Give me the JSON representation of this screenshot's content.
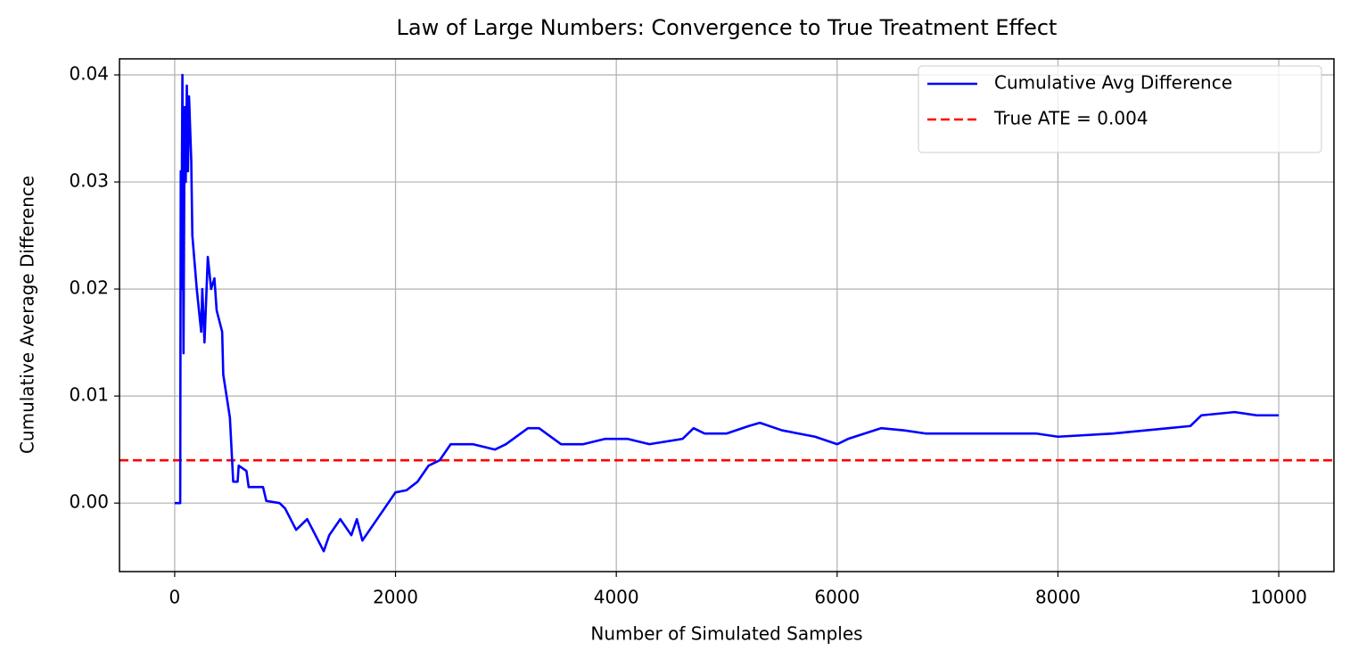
{
  "chart_data": {
    "type": "line",
    "title": "Law of Large Numbers: Convergence to True Treatment Effect",
    "xlabel": "Number of Simulated Samples",
    "ylabel": "Cumulative Average Difference",
    "x": [
      0,
      50,
      55,
      60,
      70,
      80,
      90,
      100,
      110,
      120,
      130,
      150,
      160,
      200,
      240,
      250,
      270,
      300,
      330,
      360,
      380,
      430,
      440,
      470,
      500,
      530,
      570,
      580,
      650,
      670,
      800,
      830,
      950,
      1000,
      1100,
      1200,
      1300,
      1350,
      1400,
      1500,
      1600,
      1650,
      1700,
      1800,
      1900,
      2000,
      2100,
      2200,
      2300,
      2400,
      2500,
      2700,
      2900,
      3000,
      3200,
      3300,
      3500,
      3700,
      3900,
      4100,
      4300,
      4600,
      4700,
      4800,
      5000,
      5200,
      5300,
      5500,
      5800,
      6000,
      6100,
      6400,
      6600,
      6800,
      7200,
      7500,
      7800,
      8000,
      8500,
      9000,
      9200,
      9300,
      9600,
      9800,
      10000
    ],
    "series": [
      {
        "name": "Cumulative Avg Difference",
        "color": "#0000ff",
        "values": [
          0,
          0,
          0.031,
          0.02,
          0.04,
          0.014,
          0.037,
          0.03,
          0.039,
          0.031,
          0.038,
          0.032,
          0.025,
          0.02,
          0.016,
          0.02,
          0.015,
          0.023,
          0.02,
          0.021,
          0.018,
          0.016,
          0.012,
          0.01,
          0.008,
          0.002,
          0.002,
          0.0035,
          0.003,
          0.0015,
          0.0015,
          0.0002,
          0,
          -0.0005,
          -0.0025,
          -0.0015,
          -0.0035,
          -0.0045,
          -0.003,
          -0.0015,
          -0.003,
          -0.0015,
          -0.0035,
          -0.002,
          -0.0005,
          0.001,
          0.0012,
          0.002,
          0.0035,
          0.004,
          0.0055,
          0.0055,
          0.005,
          0.0055,
          0.007,
          0.007,
          0.0055,
          0.0055,
          0.006,
          0.006,
          0.0055,
          0.006,
          0.007,
          0.0065,
          0.0065,
          0.0072,
          0.0075,
          0.0068,
          0.0062,
          0.0055,
          0.006,
          0.007,
          0.0068,
          0.0065,
          0.0065,
          0.0065,
          0.0065,
          0.0062,
          0.0065,
          0.007,
          0.0072,
          0.0082,
          0.0085,
          0.0082,
          0.0082
        ]
      }
    ],
    "hlines": [
      {
        "name": "True ATE = 0.004",
        "value": 0.004,
        "color": "#ff0000"
      }
    ],
    "xlim": [
      -500,
      10500
    ],
    "xticks": [
      0,
      2000,
      4000,
      6000,
      8000,
      10000
    ],
    "ylim": [
      -0.0064,
      0.0415
    ],
    "yticks": [
      {
        "value": 0,
        "label": "0.00"
      },
      0.01,
      0.02,
      0.03,
      0.04
    ],
    "grid": true,
    "legend": "upper right"
  }
}
